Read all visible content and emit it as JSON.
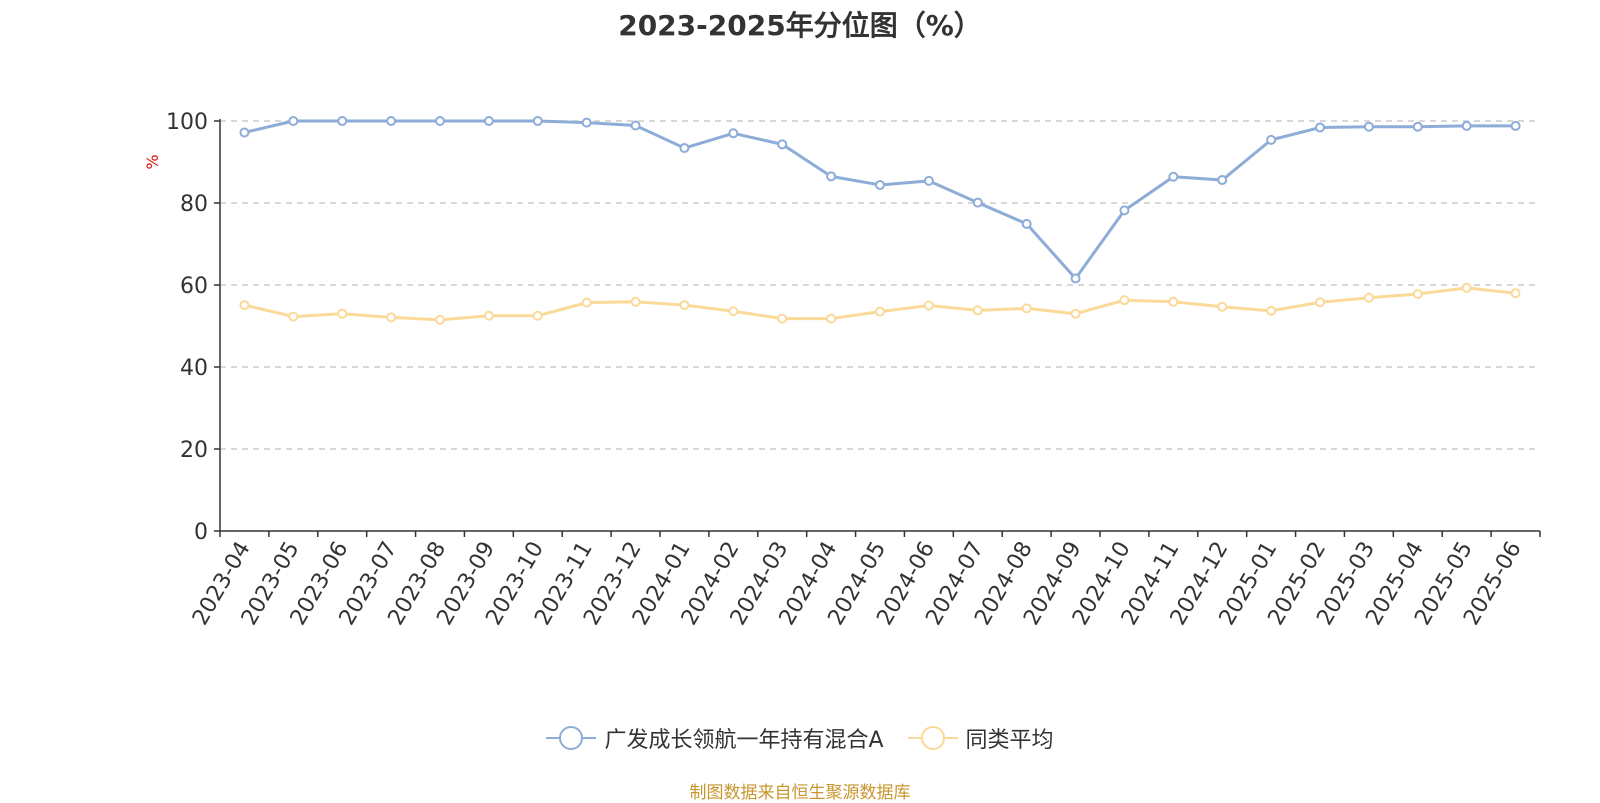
{
  "chart_data": {
    "type": "line",
    "title": "2023-2025年分位图（%）",
    "ylabel": "%",
    "xlabel": "",
    "ylim": [
      0,
      100
    ],
    "yticks": [
      0,
      20,
      40,
      60,
      80,
      100
    ],
    "grid": true,
    "legend_position": "bottom-center",
    "categories": [
      "2023-04",
      "2023-05",
      "2023-06",
      "2023-07",
      "2023-08",
      "2023-09",
      "2023-10",
      "2023-11",
      "2023-12",
      "2024-01",
      "2024-02",
      "2024-03",
      "2024-04",
      "2024-05",
      "2024-06",
      "2024-07",
      "2024-08",
      "2024-09",
      "2024-10",
      "2024-11",
      "2024-12",
      "2025-01",
      "2025-02",
      "2025-03",
      "2025-04",
      "2025-05",
      "2025-06"
    ],
    "series": [
      {
        "name": "广发成长领航一年持有混合A",
        "color": "#8eacd8",
        "values": [
          97.2,
          100,
          100,
          100,
          100,
          100,
          100,
          99.6,
          98.9,
          93.4,
          97.0,
          94.3,
          86.5,
          84.4,
          85.4,
          80.1,
          74.9,
          61.6,
          78.2,
          86.4,
          85.6,
          95.4,
          98.4,
          98.6,
          98.6,
          98.8,
          98.8
        ]
      },
      {
        "name": "同类平均",
        "color": "#fbd998",
        "values": [
          55.1,
          52.3,
          53.0,
          52.1,
          51.5,
          52.5,
          52.5,
          55.7,
          55.9,
          55.1,
          53.6,
          51.8,
          51.8,
          53.5,
          55.0,
          53.8,
          54.3,
          53.0,
          56.3,
          55.9,
          54.7,
          53.7,
          55.8,
          56.9,
          57.8,
          59.3,
          58.0
        ]
      }
    ]
  },
  "source_text": "制图数据来自恒生聚源数据库"
}
